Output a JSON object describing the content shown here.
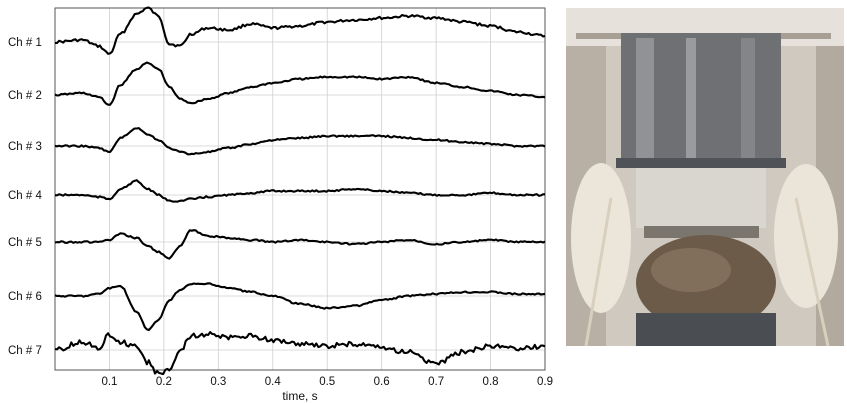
{
  "chart_data": {
    "type": "line",
    "title": "",
    "xlabel": "time, s",
    "ylabel": "",
    "xlim": [
      0.0,
      0.9
    ],
    "x_ticks": [
      "0.1",
      "0.2",
      "0.3",
      "0.4",
      "0.5",
      "0.6",
      "0.7",
      "0.8",
      "0.9"
    ],
    "grid": true,
    "x": [
      0.0,
      0.05,
      0.08,
      0.1,
      0.12,
      0.15,
      0.17,
      0.19,
      0.21,
      0.23,
      0.25,
      0.28,
      0.32,
      0.36,
      0.4,
      0.45,
      0.5,
      0.55,
      0.6,
      0.65,
      0.7,
      0.75,
      0.8,
      0.85,
      0.9
    ],
    "series": [
      {
        "name": "Ch # 1",
        "values": [
          0.0,
          0.1,
          -0.2,
          -0.6,
          0.4,
          1.4,
          1.7,
          1.3,
          -0.1,
          -0.2,
          0.4,
          0.7,
          0.6,
          0.9,
          0.7,
          0.8,
          1.0,
          1.1,
          1.2,
          1.3,
          1.2,
          1.0,
          0.8,
          0.5,
          0.3
        ]
      },
      {
        "name": "Ch # 2",
        "values": [
          0.0,
          0.1,
          -0.1,
          -0.5,
          0.5,
          1.3,
          1.6,
          1.3,
          0.4,
          -0.2,
          -0.4,
          -0.2,
          0.1,
          0.4,
          0.6,
          0.8,
          0.9,
          0.9,
          0.8,
          0.9,
          0.6,
          0.4,
          0.2,
          0.0,
          -0.1
        ]
      },
      {
        "name": "Ch # 3",
        "values": [
          0.0,
          0.0,
          -0.1,
          -0.3,
          0.4,
          0.9,
          0.6,
          0.3,
          -0.1,
          -0.3,
          -0.4,
          -0.3,
          -0.1,
          0.1,
          0.3,
          0.4,
          0.5,
          0.5,
          0.5,
          0.4,
          0.3,
          0.2,
          0.1,
          0.0,
          0.0
        ]
      },
      {
        "name": "Ch # 4",
        "values": [
          0.0,
          0.0,
          -0.1,
          -0.2,
          0.3,
          0.7,
          0.3,
          0.0,
          -0.3,
          -0.3,
          -0.2,
          -0.1,
          0.0,
          0.1,
          0.2,
          0.2,
          0.2,
          0.3,
          0.2,
          0.1,
          0.0,
          0.0,
          0.1,
          0.0,
          0.0
        ]
      },
      {
        "name": "Ch # 5",
        "values": [
          0.0,
          0.0,
          0.0,
          0.1,
          0.4,
          0.2,
          -0.2,
          -0.5,
          -0.8,
          -0.2,
          0.6,
          0.3,
          0.2,
          0.1,
          0.0,
          0.1,
          0.0,
          -0.1,
          0.0,
          0.1,
          -0.1,
          0.0,
          0.1,
          0.0,
          0.0
        ]
      },
      {
        "name": "Ch # 6",
        "values": [
          0.0,
          0.0,
          0.1,
          0.4,
          0.5,
          -0.8,
          -1.7,
          -1.2,
          -0.2,
          0.3,
          0.6,
          0.6,
          0.4,
          0.2,
          0.0,
          -0.4,
          -0.6,
          -0.5,
          -0.2,
          0.0,
          0.1,
          0.2,
          0.2,
          0.1,
          0.1
        ]
      },
      {
        "name": "Ch # 7",
        "values": [
          0.0,
          0.4,
          0.1,
          0.8,
          0.4,
          0.2,
          -0.6,
          -1.2,
          -1.0,
          0.0,
          0.7,
          0.8,
          0.6,
          0.7,
          0.5,
          0.3,
          0.2,
          0.3,
          0.1,
          -0.1,
          -0.7,
          -0.1,
          0.2,
          0.1,
          0.2
        ]
      }
    ]
  },
  "photo": {
    "subject": "photo-of-head-in-squid-magnetometer-dewar",
    "colors": {
      "background": "#d8d4cc",
      "dewar": "#6e7074",
      "cables": "#e8e2d6",
      "hair": "#6b5b48"
    }
  }
}
